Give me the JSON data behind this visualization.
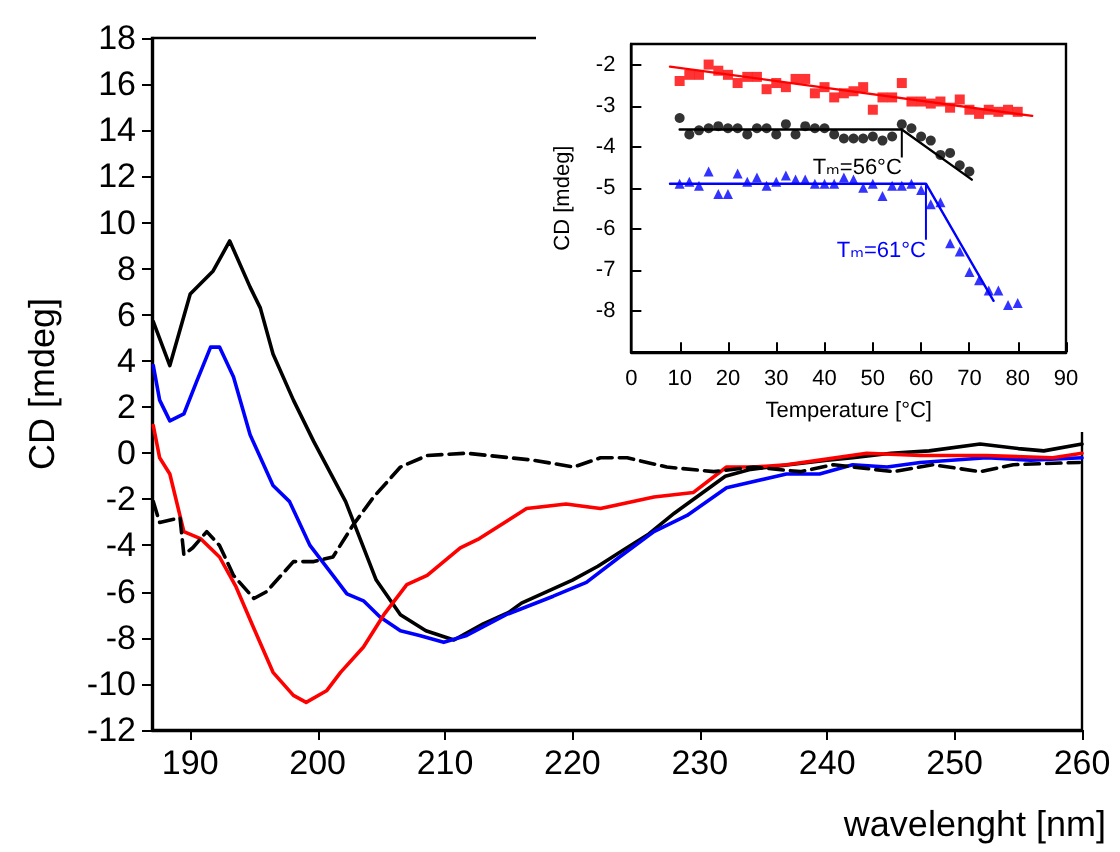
{
  "chart_data": [
    {
      "type": "line",
      "xlabel": "wavelenght [nm]",
      "ylabel": "CD [mdeg]",
      "xlim": [
        187,
        260
      ],
      "xticks": [
        190,
        200,
        210,
        220,
        230,
        240,
        250,
        260
      ],
      "ylim": [
        -12,
        18
      ],
      "yticks": [
        -12,
        -10,
        -8,
        -6,
        -4,
        -2,
        0,
        2,
        4,
        6,
        8,
        10,
        12,
        14,
        16,
        18
      ],
      "grid": false,
      "marker": "none",
      "series": [
        {
          "color": "#000000",
          "line_style": "solid",
          "x": [
            187.1,
            188.4,
            190,
            191.8,
            193.1,
            194.7,
            195.5,
            196.5,
            198.1,
            199.7,
            202.2,
            204.6,
            206.5,
            208.5,
            210.7,
            213,
            215,
            216,
            218,
            220,
            222,
            224,
            226,
            228,
            230,
            232,
            234,
            237,
            240,
            242,
            245,
            248,
            252,
            255,
            257,
            260
          ],
          "values": [
            5.7,
            3.8,
            6.9,
            7.9,
            9.2,
            7.2,
            6.3,
            4.3,
            2.3,
            0.5,
            -2.1,
            -5.5,
            -7.0,
            -7.7,
            -8.1,
            -7.4,
            -6.9,
            -6.5,
            -6.0,
            -5.5,
            -4.9,
            -4.2,
            -3.5,
            -2.6,
            -1.8,
            -1.0,
            -0.7,
            -0.5,
            -0.3,
            -0.2,
            0,
            0.1,
            0.4,
            0.2,
            0.1,
            0.4
          ]
        },
        {
          "color": "#0000ff",
          "line_style": "solid",
          "x": [
            187.1,
            187.6,
            188.4,
            189.5,
            190.5,
            191.6,
            192.3,
            193.4,
            194.7,
            196.5,
            197.8,
            199.4,
            201.2,
            202.3,
            203.6,
            204.9,
            206.5,
            208,
            209.9,
            211.7,
            214.8,
            218.5,
            221.1,
            223.7,
            226.4,
            229,
            232.1,
            236.8,
            239.4,
            242,
            244.7,
            247.3,
            252.5,
            256,
            260
          ],
          "values": [
            3.8,
            2.3,
            1.4,
            1.7,
            3.1,
            4.6,
            4.6,
            3.3,
            0.8,
            -1.4,
            -2.1,
            -4.0,
            -5.3,
            -6.1,
            -6.4,
            -7.1,
            -7.7,
            -7.9,
            -8.2,
            -7.9,
            -7.0,
            -6.2,
            -5.6,
            -4.5,
            -3.4,
            -2.7,
            -1.5,
            -0.9,
            -0.9,
            -0.5,
            -0.6,
            -0.4,
            -0.2,
            -0.3,
            -0.2
          ]
        },
        {
          "color": "#ff0000",
          "line_style": "solid",
          "x": [
            187.1,
            187.6,
            188.4,
            189.5,
            190.8,
            192.3,
            193.6,
            195,
            196.5,
            198.1,
            199.1,
            200.7,
            201.8,
            203.6,
            205.2,
            207,
            208.6,
            211.2,
            212.7,
            216.4,
            219.5,
            222.2,
            226.4,
            229.5,
            232.1,
            234.2,
            236.8,
            239.4,
            243.1,
            247.3,
            252.5,
            257.7,
            260
          ],
          "values": [
            1.2,
            -0.2,
            -0.9,
            -3.4,
            -3.7,
            -4.5,
            -5.8,
            -7.6,
            -9.5,
            -10.5,
            -10.8,
            -10.3,
            -9.5,
            -8.4,
            -7.0,
            -5.7,
            -5.3,
            -4.1,
            -3.7,
            -2.4,
            -2.2,
            -2.4,
            -1.9,
            -1.7,
            -0.6,
            -0.6,
            -0.5,
            -0.3,
            0,
            -0.1,
            -0.1,
            -0.2,
            0
          ]
        },
        {
          "color": "#000000",
          "line_style": "dashed",
          "x": [
            187.1,
            187.6,
            189.2,
            189.5,
            190.2,
            191.3,
            192.3,
            193.4,
            195,
            196,
            198.1,
            199.7,
            201.2,
            202.8,
            204.4,
            206.5,
            208.6,
            211.7,
            216.9,
            220.1,
            222.2,
            224.3,
            227.4,
            231.1,
            234.2,
            237.9,
            240.5,
            245.2,
            248.3,
            252,
            254.6,
            259.8
          ],
          "values": [
            -2.1,
            -3.0,
            -2.8,
            -4.4,
            -4.1,
            -3.4,
            -4.0,
            -5.3,
            -6.3,
            -6.0,
            -4.7,
            -4.7,
            -4.5,
            -3.1,
            -1.9,
            -0.6,
            -0.1,
            0,
            -0.3,
            -0.6,
            -0.2,
            -0.2,
            -0.6,
            -0.8,
            -0.6,
            -0.8,
            -0.5,
            -0.8,
            -0.5,
            -0.8,
            -0.5,
            -0.4
          ]
        }
      ]
    },
    {
      "type": "scatter",
      "xlabel": "Temperature [°C]",
      "ylabel": "CD [mdeg]",
      "xlim": [
        0,
        90
      ],
      "xticks": [
        0,
        10,
        20,
        30,
        40,
        50,
        60,
        70,
        80,
        90
      ],
      "ylim": [
        -9,
        -1.5
      ],
      "yticks": [
        -8,
        -7,
        -6,
        -5,
        -4,
        -3,
        -2
      ],
      "grid": false,
      "series": [
        {
          "type": "scatter",
          "marker": "square",
          "color": "#ff0000",
          "x": [
            10,
            12,
            14,
            16,
            18,
            20,
            22,
            24,
            26,
            28,
            30,
            32,
            34,
            36,
            38,
            40,
            42,
            44,
            46,
            48,
            50,
            52,
            54,
            56,
            58,
            60,
            62,
            64,
            66,
            68,
            70,
            72,
            74,
            76,
            78,
            80
          ],
          "values": [
            -2.4,
            -2.25,
            -2.25,
            -2.0,
            -2.15,
            -2.25,
            -2.45,
            -2.3,
            -2.3,
            -2.6,
            -2.45,
            -2.55,
            -2.35,
            -2.35,
            -2.7,
            -2.55,
            -2.8,
            -2.7,
            -2.65,
            -2.55,
            -3.1,
            -2.8,
            -2.8,
            -2.45,
            -2.9,
            -2.9,
            -2.95,
            -2.9,
            -3.05,
            -2.85,
            -3.1,
            -3.2,
            -3.1,
            -3.15,
            -3.1,
            -3.15
          ]
        },
        {
          "type": "scatter",
          "marker": "circle",
          "color": "#000000",
          "x": [
            10,
            12,
            14,
            16,
            18,
            20,
            22,
            24,
            26,
            28,
            30,
            32,
            34,
            36,
            38,
            40,
            42,
            44,
            46,
            48,
            50,
            52,
            54,
            56,
            58,
            60,
            62,
            64,
            66,
            68,
            70
          ],
          "values": [
            -3.3,
            -3.7,
            -3.6,
            -3.55,
            -3.5,
            -3.55,
            -3.55,
            -3.7,
            -3.55,
            -3.55,
            -3.7,
            -3.45,
            -3.7,
            -3.5,
            -3.55,
            -3.55,
            -3.7,
            -3.8,
            -3.8,
            -3.8,
            -3.75,
            -3.85,
            -3.75,
            -3.45,
            -3.55,
            -3.75,
            -3.85,
            -4.2,
            -4.15,
            -4.45,
            -4.6
          ]
        },
        {
          "type": "scatter",
          "marker": "triangle",
          "color": "#0000ff",
          "x": [
            10,
            12,
            14,
            16,
            18,
            20,
            22,
            24,
            26,
            28,
            30,
            32,
            34,
            36,
            38,
            40,
            42,
            44,
            46,
            48,
            50,
            52,
            54,
            56,
            58,
            60,
            62,
            64,
            66,
            68,
            70,
            72,
            74,
            76,
            78,
            80
          ],
          "values": [
            -4.9,
            -4.85,
            -4.95,
            -4.6,
            -5.15,
            -5.15,
            -4.65,
            -4.85,
            -4.75,
            -4.95,
            -4.85,
            -4.7,
            -4.8,
            -4.8,
            -4.9,
            -4.9,
            -4.9,
            -4.75,
            -4.8,
            -5.0,
            -4.9,
            -5.2,
            -4.95,
            -4.95,
            -4.9,
            -5.05,
            -5.4,
            -5.35,
            -6.35,
            -6.55,
            -7.05,
            -7.25,
            -7.5,
            -7.5,
            -7.85,
            -7.8
          ]
        },
        {
          "type": "line",
          "marker": "none",
          "color": "#ff0000",
          "x": [
            8,
            83
          ],
          "values": [
            -2.05,
            -3.25
          ]
        },
        {
          "type": "line",
          "marker": "none",
          "color": "#000000",
          "x": [
            10,
            56,
            70.5
          ],
          "values": [
            -3.58,
            -3.58,
            -4.8
          ]
        },
        {
          "type": "line",
          "marker": "none",
          "color": "#0000ff",
          "x": [
            8,
            61,
            75
          ],
          "values": [
            -4.9,
            -4.9,
            -7.75
          ]
        }
      ],
      "annotations": [
        {
          "text": "Tₘ=56°C",
          "x": 56,
          "y": -3.58
        },
        {
          "text": "Tₘ=61°C",
          "x": 61,
          "y": -4.9
        }
      ]
    }
  ]
}
